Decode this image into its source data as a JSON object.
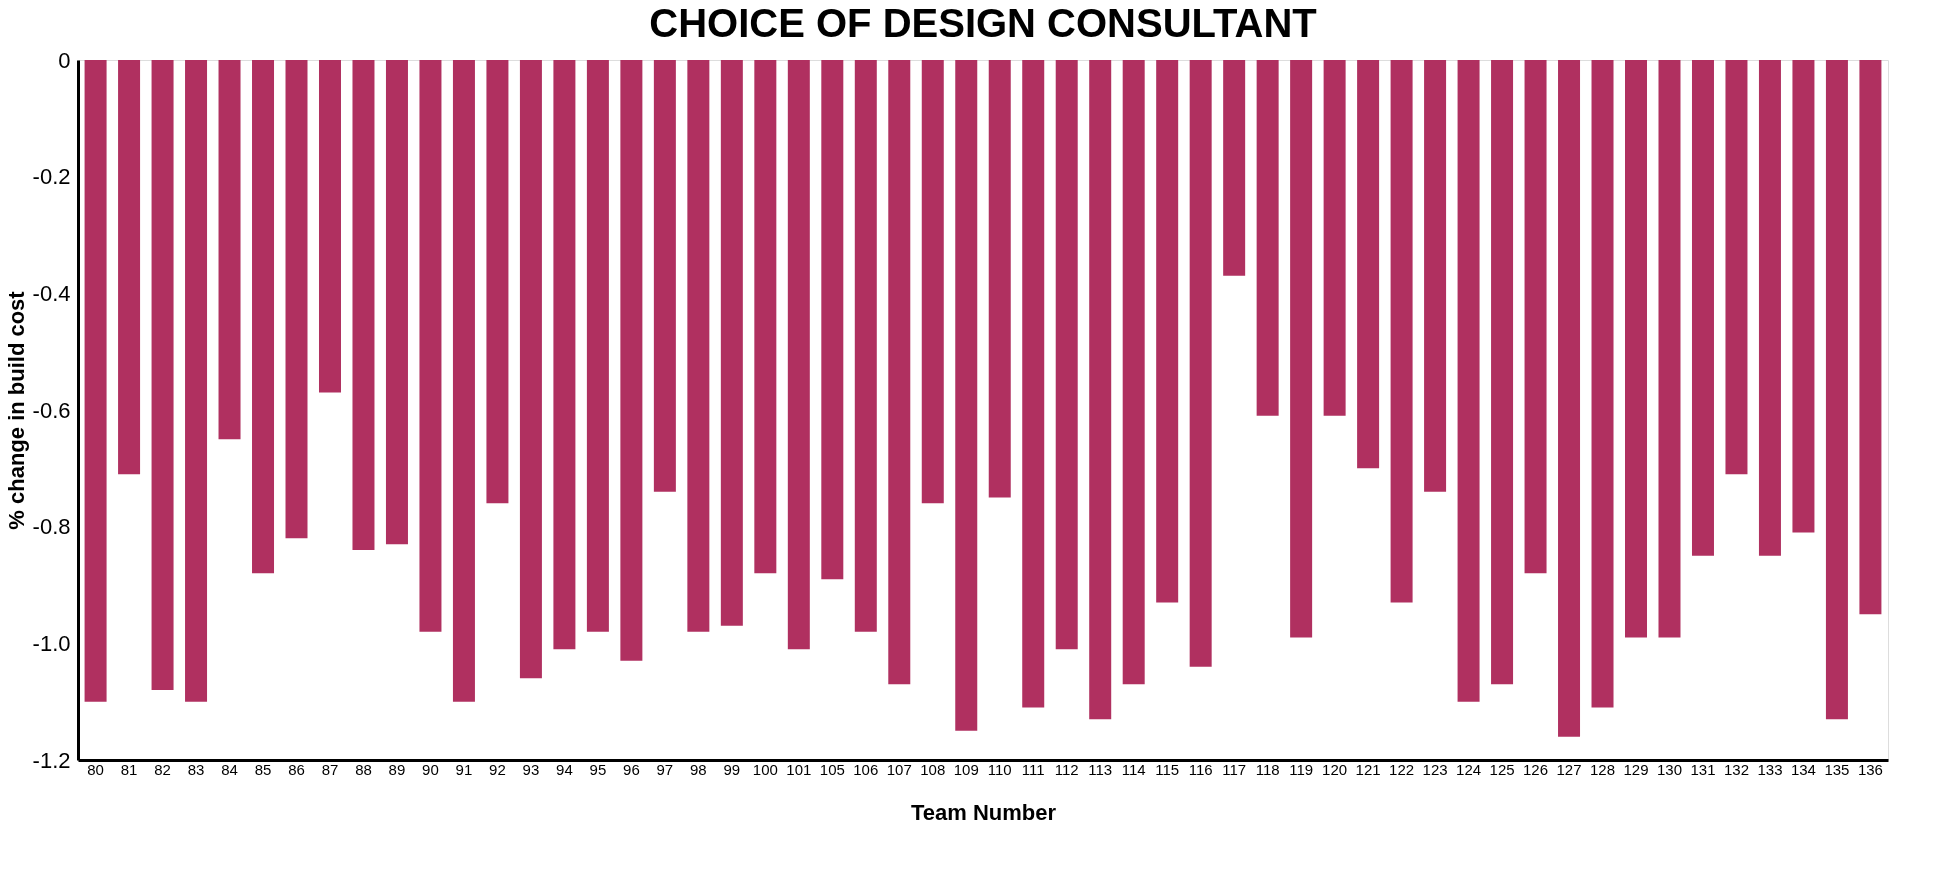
{
  "chart_data": {
    "type": "bar",
    "title": "CHOICE OF DESIGN CONSULTANT",
    "xlabel": "Team Number",
    "ylabel": "% change in build cost",
    "categories": [
      "80",
      "81",
      "82",
      "83",
      "84",
      "85",
      "86",
      "87",
      "88",
      "89",
      "90",
      "91",
      "92",
      "93",
      "94",
      "95",
      "96",
      "97",
      "98",
      "99",
      "100",
      "101",
      "105",
      "106",
      "107",
      "108",
      "109",
      "110",
      "111",
      "112",
      "113",
      "114",
      "115",
      "116",
      "117",
      "118",
      "119",
      "120",
      "121",
      "122",
      "123",
      "124",
      "125",
      "126",
      "127",
      "128",
      "129",
      "130",
      "131",
      "132",
      "133",
      "134",
      "135",
      "136"
    ],
    "series": [
      {
        "color": "#b03060",
        "values": [
          -1.1,
          -0.71,
          -1.08,
          -1.1,
          -0.65,
          -0.88,
          -0.82,
          -0.57,
          -0.84,
          -0.83,
          -0.98,
          -1.1,
          -0.76,
          -1.06,
          -1.01,
          -0.98,
          -1.03,
          -0.74,
          -0.98,
          -0.97,
          -0.88,
          -1.01,
          -0.89,
          -0.98,
          -1.07,
          -0.76,
          -1.15,
          -0.75,
          -1.11,
          -1.01,
          -1.13,
          -1.07,
          -0.93,
          -1.04,
          -0.37,
          -0.61,
          -0.99,
          -0.61,
          -0.7,
          -0.93,
          -0.74,
          -1.1,
          -1.07,
          -0.88,
          -1.16,
          -1.11,
          -0.99,
          -0.99,
          -0.85,
          -0.71,
          -0.85,
          -0.81,
          -1.13,
          -0.95
        ]
      }
    ],
    "ylim": [
      -1.2,
      0
    ],
    "yticks": [
      0,
      {
        "value": -0.2,
        "label": "-0.2"
      },
      {
        "value": -0.4,
        "label": "-0.4"
      },
      {
        "value": -0.6,
        "label": "-0.6"
      },
      {
        "value": -0.8,
        "label": "-0.8"
      },
      {
        "value": -1.0,
        "label": "-1.0"
      },
      {
        "value": -1.2,
        "label": "-1.2"
      }
    ],
    "grid": false
  }
}
